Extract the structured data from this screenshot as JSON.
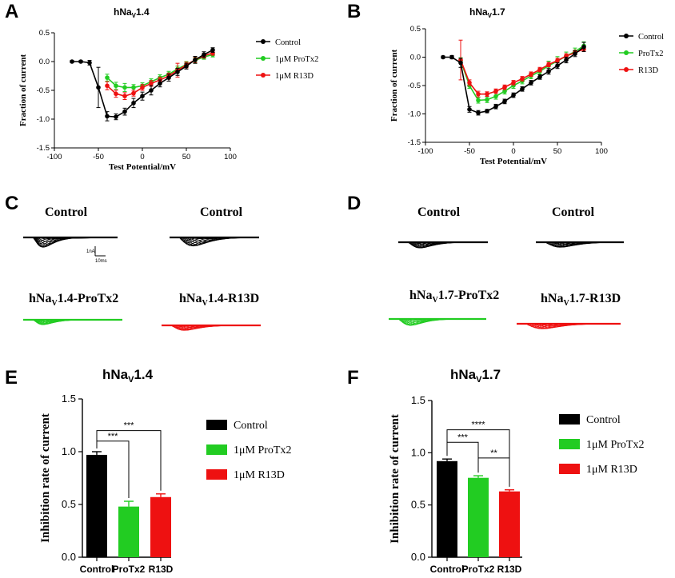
{
  "panels": {
    "A": {
      "letter": "A",
      "title": "hNa",
      "title_sub": "V",
      "title_tail": "1.4"
    },
    "B": {
      "letter": "B",
      "title": "hNa",
      "title_sub": "V",
      "title_tail": "1.7"
    },
    "C": {
      "letter": "C",
      "labels": [
        "Control",
        "Control"
      ],
      "label_bottom_left": {
        "main": "hNa",
        "sub": "V",
        "tail": "1.4-ProTx2"
      },
      "label_bottom_right": {
        "main": "hNa",
        "sub": "V",
        "tail": "1.4-R13D"
      },
      "scale_current": "1nA",
      "scale_time": "10ms"
    },
    "D": {
      "letter": "D",
      "labels": [
        "Control",
        "Control"
      ],
      "label_bottom_left": {
        "main": "hNa",
        "sub": "V",
        "tail": "1.7-ProTx2"
      },
      "label_bottom_right": {
        "main": "hNa",
        "sub": "V",
        "tail": "1.7-R13D"
      }
    },
    "E": {
      "letter": "E",
      "title": "hNa",
      "title_sub": "V",
      "title_tail": "1.4"
    },
    "F": {
      "letter": "F",
      "title": "hNa",
      "title_sub": "V",
      "title_tail": "1.7"
    }
  },
  "colors": {
    "control": "#000000",
    "protx2": "#22cc22",
    "r13d": "#ee1111"
  },
  "chart_data": [
    {
      "id": "A",
      "type": "line",
      "title": "hNaV1.4",
      "xlabel": "Test Potential/mV",
      "ylabel": "Fraction of current",
      "xlim": [
        -100,
        100
      ],
      "ylim": [
        -1.5,
        0.5
      ],
      "xticks": [
        -100,
        -50,
        0,
        50,
        100
      ],
      "yticks": [
        0.5,
        0.0,
        -0.5,
        -1.0,
        -1.5
      ],
      "ytick_labels": [
        "0.5",
        "0.0",
        "-0.5",
        "-1.0",
        "-1.5"
      ],
      "x": [
        -80,
        -70,
        -60,
        -50,
        -40,
        -30,
        -20,
        -10,
        0,
        10,
        20,
        30,
        40,
        50,
        60,
        70,
        80
      ],
      "series": [
        {
          "name": "Control",
          "color": "#000000",
          "values": [
            0.0,
            0.0,
            -0.02,
            -0.45,
            -0.95,
            -0.96,
            -0.87,
            -0.72,
            -0.6,
            -0.5,
            -0.38,
            -0.28,
            -0.18,
            -0.08,
            0.03,
            0.12,
            0.2
          ],
          "errors": [
            0.02,
            0.02,
            0.04,
            0.35,
            0.08,
            0.05,
            0.06,
            0.08,
            0.07,
            0.08,
            0.06,
            0.06,
            0.06,
            0.05,
            0.06,
            0.05,
            0.04
          ]
        },
        {
          "name": "1μM ProTx2",
          "color": "#22cc22",
          "values": [
            null,
            null,
            null,
            null,
            -0.28,
            -0.42,
            -0.45,
            -0.45,
            -0.42,
            -0.35,
            -0.28,
            -0.22,
            -0.13,
            -0.05,
            0.02,
            0.08,
            0.12
          ],
          "errors": [
            0,
            0,
            0,
            0,
            0.06,
            0.06,
            0.07,
            0.05,
            0.05,
            0.05,
            0.05,
            0.05,
            0.05,
            0.05,
            0.05,
            0.04,
            0.04
          ]
        },
        {
          "name": "1μM R13D",
          "color": "#ee1111",
          "values": [
            null,
            null,
            null,
            null,
            -0.42,
            -0.56,
            -0.6,
            -0.55,
            -0.45,
            -0.38,
            -0.32,
            -0.25,
            -0.15,
            -0.06,
            0.03,
            0.1,
            0.15
          ],
          "errors": [
            0,
            0,
            0,
            0,
            0.07,
            0.06,
            0.06,
            0.05,
            0.05,
            0.05,
            0.05,
            0.05,
            0.12,
            0.05,
            0.05,
            0.04,
            0.04
          ]
        }
      ],
      "legend": [
        "Control",
        "1μM ProTx2",
        "1μM R13D"
      ]
    },
    {
      "id": "B",
      "type": "line",
      "title": "hNaV1.7",
      "xlabel": "Test Potential/mV",
      "ylabel": "Fraction of current",
      "xlim": [
        -100,
        100
      ],
      "ylim": [
        -1.5,
        0.5
      ],
      "xticks": [
        -100,
        -50,
        0,
        50,
        100
      ],
      "yticks": [
        0.5,
        0.0,
        -0.5,
        -1.0,
        -1.5
      ],
      "ytick_labels": [
        "0.5",
        "0.0",
        "-0.5",
        "-1.0",
        "-1.5"
      ],
      "x": [
        -80,
        -70,
        -60,
        -50,
        -40,
        -30,
        -20,
        -10,
        0,
        10,
        20,
        30,
        40,
        50,
        60,
        70,
        80
      ],
      "series": [
        {
          "name": "Control",
          "color": "#000000",
          "values": [
            0.0,
            0.0,
            -0.1,
            -0.92,
            -0.98,
            -0.95,
            -0.87,
            -0.78,
            -0.67,
            -0.56,
            -0.45,
            -0.35,
            -0.25,
            -0.15,
            -0.05,
            0.06,
            0.18
          ],
          "errors": [
            0.02,
            0.03,
            0.08,
            0.05,
            0.04,
            0.03,
            0.04,
            0.04,
            0.04,
            0.04,
            0.04,
            0.04,
            0.05,
            0.05,
            0.05,
            0.05,
            0.08
          ]
        },
        {
          "name": "ProTx2",
          "color": "#22cc22",
          "values": [
            null,
            null,
            -0.06,
            -0.5,
            -0.76,
            -0.75,
            -0.69,
            -0.6,
            -0.5,
            -0.42,
            -0.33,
            -0.25,
            -0.15,
            -0.07,
            0.02,
            0.1,
            0.2
          ],
          "errors": [
            0,
            0,
            0.05,
            0.05,
            0.05,
            0.05,
            0.05,
            0.05,
            0.05,
            0.05,
            0.05,
            0.05,
            0.08,
            0.08,
            0.07,
            0.06,
            0.07
          ]
        },
        {
          "name": "R13D",
          "color": "#ee1111",
          "values": [
            null,
            null,
            -0.05,
            -0.45,
            -0.65,
            -0.65,
            -0.6,
            -0.53,
            -0.45,
            -0.38,
            -0.3,
            -0.22,
            -0.13,
            -0.06,
            0.02,
            0.08,
            0.14
          ],
          "errors": [
            0,
            0,
            0.35,
            0.05,
            0.05,
            0.04,
            0.04,
            0.04,
            0.04,
            0.04,
            0.04,
            0.04,
            0.04,
            0.04,
            0.04,
            0.04,
            0.04
          ]
        }
      ],
      "legend": [
        "Control",
        "ProTx2",
        "R13D"
      ]
    },
    {
      "id": "E",
      "type": "bar",
      "title": "hNaV1.4",
      "ylabel": "Inhibition rate of current",
      "xlabel": "",
      "categories": [
        "Control",
        "ProTx2",
        "R13D"
      ],
      "values": [
        0.97,
        0.48,
        0.57
      ],
      "errors": [
        0.03,
        0.05,
        0.03
      ],
      "colors": [
        "#000000",
        "#22cc22",
        "#ee1111"
      ],
      "ylim": [
        0.0,
        1.5
      ],
      "yticks": [
        0.0,
        0.5,
        1.0,
        1.5
      ],
      "ytick_labels": [
        "0.0",
        "0.5",
        "1.0",
        "1.5"
      ],
      "legend": [
        "Control",
        "1μM ProTx2",
        "1μM R13D"
      ],
      "significance": [
        {
          "from": 0,
          "to": 1,
          "label": "***"
        },
        {
          "from": 0,
          "to": 2,
          "label": "***"
        }
      ]
    },
    {
      "id": "F",
      "type": "bar",
      "title": "hNaV1.7",
      "ylabel": "Inhibition rate of current",
      "xlabel": "",
      "categories": [
        "Control",
        "ProTx2",
        "R13D"
      ],
      "values": [
        0.92,
        0.76,
        0.63
      ],
      "errors": [
        0.02,
        0.02,
        0.015
      ],
      "colors": [
        "#000000",
        "#22cc22",
        "#ee1111"
      ],
      "ylim": [
        0.0,
        1.5
      ],
      "yticks": [
        0.0,
        0.5,
        1.0,
        1.5
      ],
      "ytick_labels": [
        "0.0",
        "0.5",
        "1.0",
        "1.5"
      ],
      "legend": [
        "Control",
        "1μM ProTx2",
        "1μM R13D"
      ],
      "significance": [
        {
          "from": 0,
          "to": 1,
          "label": "***"
        },
        {
          "from": 0,
          "to": 2,
          "label": "****"
        },
        {
          "from": 1,
          "to": 2,
          "label": "**"
        }
      ]
    }
  ]
}
